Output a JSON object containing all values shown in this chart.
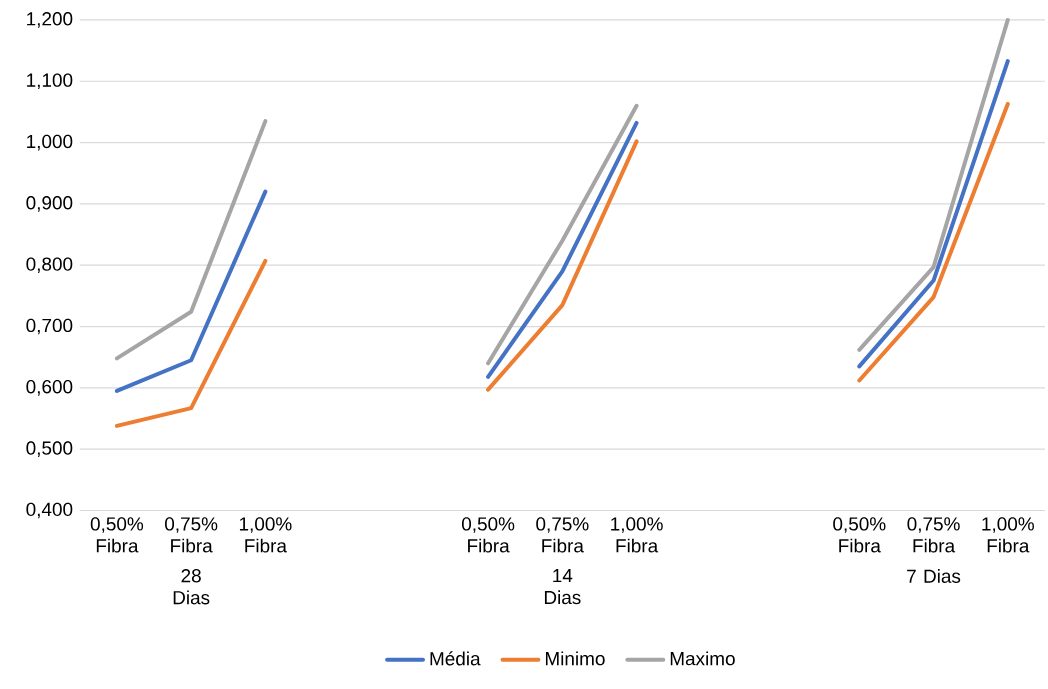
{
  "chart_data": {
    "type": "line",
    "categories": [
      "0,50% Fibra",
      "0,75% Fibra",
      "1,00% Fibra",
      null,
      null,
      "0,50% Fibra",
      "0,75% Fibra",
      "1,00% Fibra",
      null,
      null,
      "0,50% Fibra",
      "0,75% Fibra",
      "1,00% Fibra"
    ],
    "series": [
      {
        "name": "Média",
        "color": "#4472c4",
        "values": [
          0.595,
          0.645,
          0.92,
          null,
          null,
          0.618,
          0.79,
          1.032,
          null,
          null,
          0.635,
          0.775,
          1.133
        ]
      },
      {
        "name": "Minimo",
        "color": "#ed7d31",
        "values": [
          0.538,
          0.567,
          0.807,
          null,
          null,
          0.597,
          0.735,
          1.002,
          null,
          null,
          0.612,
          0.748,
          1.063
        ]
      },
      {
        "name": "Maximo",
        "color": "#a5a5a5",
        "values": [
          0.648,
          0.724,
          1.035,
          null,
          null,
          0.64,
          0.84,
          1.06,
          null,
          null,
          0.662,
          0.797,
          1.2
        ]
      }
    ],
    "annotations": [
      "28 Dias",
      "14 Dias",
      "7 Dias"
    ],
    "ylim": [
      0.4,
      1.2
    ],
    "yticks": [
      {
        "value": 0.4,
        "label": "0,400"
      },
      {
        "value": 0.5,
        "label": "0,500"
      },
      {
        "value": 0.6,
        "label": "0,600"
      },
      {
        "value": 0.7,
        "label": "0,700"
      },
      {
        "value": 0.8,
        "label": "0,800"
      },
      {
        "value": 0.9,
        "label": "0,900"
      },
      {
        "value": 1.0,
        "label": "1,000"
      },
      {
        "value": 1.1,
        "label": "1,100"
      },
      {
        "value": 1.2,
        "label": "1,200"
      }
    ],
    "grid": "y",
    "legend": "bottom",
    "marker": "none",
    "line_style": "solid"
  }
}
